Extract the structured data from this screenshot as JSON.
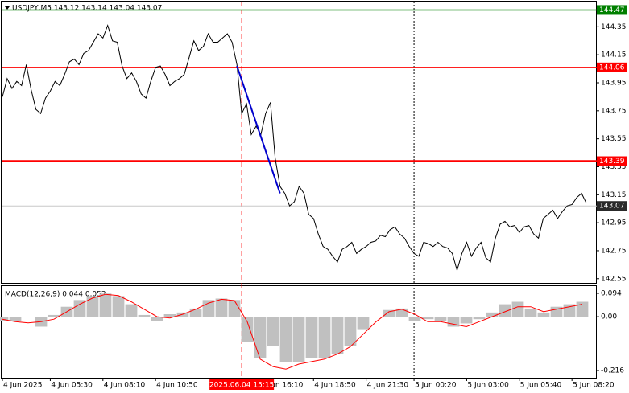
{
  "chart_data": [
    {
      "type": "line",
      "title": "USDJPY,M5  143.12 143.14 143.04 143.07",
      "color": "#000000",
      "values": [
        143.85,
        143.98,
        143.91,
        143.96,
        143.93,
        144.08,
        143.9,
        143.76,
        143.73,
        143.84,
        143.89,
        143.96,
        143.93,
        144.01,
        144.1,
        144.12,
        144.08,
        144.16,
        144.18,
        144.24,
        144.3,
        144.27,
        144.36,
        144.25,
        144.24,
        144.07,
        143.98,
        144.02,
        143.96,
        143.87,
        143.84,
        143.96,
        144.06,
        144.07,
        144.01,
        143.93,
        143.96,
        143.98,
        144.01,
        144.13,
        144.25,
        144.18,
        144.21,
        144.3,
        144.24,
        144.24,
        144.27,
        144.3,
        144.24,
        144.08,
        143.73,
        143.8,
        143.58,
        143.64,
        143.58,
        143.73,
        143.81,
        143.41,
        143.21,
        143.16,
        143.07,
        143.1,
        143.21,
        143.16,
        143.01,
        142.98,
        142.87,
        142.78,
        142.76,
        142.71,
        142.67,
        142.76,
        142.78,
        142.81,
        142.73,
        142.76,
        142.78,
        142.81,
        142.82,
        142.86,
        142.85,
        142.9,
        142.92,
        142.87,
        142.84,
        142.78,
        142.73,
        142.71,
        142.81,
        142.8,
        142.78,
        142.81,
        142.78,
        142.77,
        142.73,
        142.61,
        142.73,
        142.81,
        142.71,
        142.77,
        142.81,
        142.7,
        142.67,
        142.84,
        142.94,
        142.96,
        142.92,
        142.93,
        142.88,
        142.92,
        142.93,
        142.87,
        142.84,
        142.98,
        143.01,
        143.04,
        142.98,
        143.03,
        143.07,
        143.08,
        143.13,
        143.16,
        143.09
      ],
      "ylim": [
        142.52,
        144.53
      ],
      "yticks": [
        144.35,
        144.15,
        143.95,
        143.75,
        143.55,
        143.35,
        143.15,
        142.95,
        142.75,
        142.55
      ],
      "hlines": [
        {
          "value": 144.47,
          "color": "#008000",
          "width": 1.5
        },
        {
          "value": 144.06,
          "color": "#ff0000",
          "width": 1.5
        },
        {
          "value": 143.39,
          "color": "#ff0000",
          "width": 2.5
        },
        {
          "value": 143.07,
          "color": "#c8c8c8",
          "width": 1,
          "label_bg": "#2a2a2a"
        }
      ],
      "trend_line": {
        "color": "#0000cc",
        "start": [
          49,
          144.07
        ],
        "end": [
          58,
          143.16
        ]
      },
      "vlines": [
        {
          "at": 50,
          "color": "#ff0000",
          "dash": "6,4"
        },
        {
          "at": 86,
          "color": "#000000",
          "dash": "2,2"
        }
      ],
      "xticks": [
        {
          "value": 0,
          "label": "4 Jun 2025"
        },
        {
          "value": 10,
          "label": "4 Jun 05:30"
        },
        {
          "value": 21,
          "label": "4 Jun 08:10"
        },
        {
          "value": 32,
          "label": "4 Jun 10:50"
        },
        {
          "value": 54,
          "label": "4 Jun 16:10"
        },
        {
          "value": 65,
          "label": "4 Jun 18:50"
        },
        {
          "value": 76,
          "label": "4 Jun 21:30"
        },
        {
          "value": 86,
          "label": "5 Jun 00:20"
        },
        {
          "value": 97,
          "label": "5 Jun 03:00"
        },
        {
          "value": 108,
          "label": "5 Jun 05:40"
        },
        {
          "value": 119,
          "label": "5 Jun 08:20"
        }
      ],
      "cursor_label": {
        "value": 50,
        "label": "2025.06.04 15:15",
        "color": "#ff0000"
      }
    },
    {
      "type": "macd",
      "title": "MACD(12,26,9) 0.044 0.052",
      "series": [
        {
          "type": "bar",
          "color": "#c0c0c0",
          "values": [
            -0.017,
            -0.017,
            0,
            -0.04,
            0.007,
            0.04,
            0.067,
            0.083,
            0.093,
            0.083,
            0.05,
            0.007,
            -0.017,
            0.01,
            0.017,
            0.033,
            0.067,
            0.073,
            0.067,
            -0.1,
            -0.167,
            -0.117,
            -0.183,
            -0.183,
            -0.167,
            -0.167,
            -0.15,
            -0.117,
            -0.05,
            0,
            0.027,
            0.033,
            -0.017,
            -0.01,
            -0.017,
            -0.04,
            -0.027,
            -0.01,
            0.017,
            0.05,
            0.06,
            0.033,
            0.017,
            0.04,
            0.05,
            0.06
          ]
        },
        {
          "type": "line",
          "color": "#ff0000",
          "values": [
            -0.01,
            -0.02,
            -0.025,
            -0.02,
            -0.01,
            0.02,
            0.05,
            0.075,
            0.09,
            0.085,
            0.06,
            0.03,
            0,
            -0.005,
            0.01,
            0.03,
            0.055,
            0.07,
            0.065,
            -0.02,
            -0.17,
            -0.2,
            -0.21,
            -0.19,
            -0.18,
            -0.17,
            -0.15,
            -0.12,
            -0.07,
            -0.02,
            0.02,
            0.03,
            0.01,
            -0.02,
            -0.02,
            -0.03,
            -0.04,
            -0.02,
            0,
            0.02,
            0.04,
            0.04,
            0.02,
            0.03,
            0.04,
            0.05
          ]
        }
      ],
      "ylim": [
        -0.245,
        0.123
      ],
      "yticks": [
        0.094,
        {
          "value": 0,
          "label": "0.00"
        },
        -0.216
      ]
    }
  ]
}
